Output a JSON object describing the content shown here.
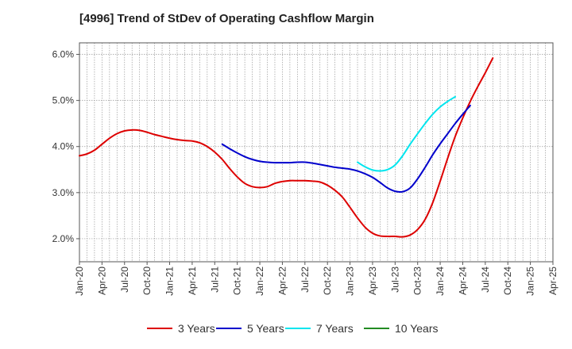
{
  "chart_data": {
    "type": "line",
    "title": "[4996]  Trend of StDev of Operating Cashflow Margin",
    "xlabel": "",
    "ylabel": "",
    "x_ticks": [
      "Jan-20",
      "Apr-20",
      "Jul-20",
      "Oct-20",
      "Jan-21",
      "Apr-21",
      "Jul-21",
      "Oct-21",
      "Jan-22",
      "Apr-22",
      "Jul-22",
      "Oct-22",
      "Jan-23",
      "Apr-23",
      "Jul-23",
      "Oct-23",
      "Jan-24",
      "Apr-24",
      "Jul-24",
      "Oct-24",
      "Jan-25",
      "Apr-25"
    ],
    "y_ticks": [
      {
        "value": 2.0,
        "label": "2.0%"
      },
      {
        "value": 3.0,
        "label": "3.0%"
      },
      {
        "value": 4.0,
        "label": "4.0%"
      },
      {
        "value": 5.0,
        "label": "5.0%"
      },
      {
        "value": 6.0,
        "label": "6.0%"
      }
    ],
    "ylim": [
      1.5,
      6.25
    ],
    "xlim": [
      "2020-01",
      "2025-04"
    ],
    "grid": true,
    "legend_position": "bottom",
    "series": [
      {
        "name": "3 Years",
        "color": "#dd0000",
        "points": [
          [
            "2020-01",
            3.8
          ],
          [
            "2020-02",
            3.84
          ],
          [
            "2020-03",
            3.92
          ],
          [
            "2020-04",
            4.05
          ],
          [
            "2020-05",
            4.18
          ],
          [
            "2020-06",
            4.28
          ],
          [
            "2020-07",
            4.34
          ],
          [
            "2020-08",
            4.36
          ],
          [
            "2020-09",
            4.35
          ],
          [
            "2020-10",
            4.31
          ],
          [
            "2020-11",
            4.26
          ],
          [
            "2020-12",
            4.22
          ],
          [
            "2021-01",
            4.18
          ],
          [
            "2021-02",
            4.15
          ],
          [
            "2021-03",
            4.13
          ],
          [
            "2021-04",
            4.12
          ],
          [
            "2021-05",
            4.08
          ],
          [
            "2021-06",
            4.0
          ],
          [
            "2021-07",
            3.88
          ],
          [
            "2021-08",
            3.72
          ],
          [
            "2021-09",
            3.52
          ],
          [
            "2021-10",
            3.34
          ],
          [
            "2021-11",
            3.2
          ],
          [
            "2021-12",
            3.13
          ],
          [
            "2022-01",
            3.11
          ],
          [
            "2022-02",
            3.13
          ],
          [
            "2022-03",
            3.2
          ],
          [
            "2022-04",
            3.24
          ],
          [
            "2022-05",
            3.26
          ],
          [
            "2022-06",
            3.26
          ],
          [
            "2022-07",
            3.26
          ],
          [
            "2022-08",
            3.25
          ],
          [
            "2022-09",
            3.23
          ],
          [
            "2022-10",
            3.16
          ],
          [
            "2022-11",
            3.05
          ],
          [
            "2022-12",
            2.9
          ],
          [
            "2023-01",
            2.68
          ],
          [
            "2023-02",
            2.45
          ],
          [
            "2023-03",
            2.25
          ],
          [
            "2023-04",
            2.12
          ],
          [
            "2023-05",
            2.06
          ],
          [
            "2023-06",
            2.05
          ],
          [
            "2023-07",
            2.05
          ],
          [
            "2023-08",
            2.04
          ],
          [
            "2023-09",
            2.08
          ],
          [
            "2023-10",
            2.2
          ],
          [
            "2023-11",
            2.42
          ],
          [
            "2023-12",
            2.78
          ],
          [
            "2024-01",
            3.25
          ],
          [
            "2024-02",
            3.75
          ],
          [
            "2024-03",
            4.22
          ],
          [
            "2024-04",
            4.62
          ],
          [
            "2024-05",
            4.98
          ],
          [
            "2024-06",
            5.3
          ],
          [
            "2024-07",
            5.6
          ],
          [
            "2024-08",
            5.92
          ]
        ]
      },
      {
        "name": "5 Years",
        "color": "#0000cc",
        "points": [
          [
            "2021-08",
            4.05
          ],
          [
            "2021-09",
            3.95
          ],
          [
            "2021-10",
            3.86
          ],
          [
            "2021-11",
            3.78
          ],
          [
            "2021-12",
            3.72
          ],
          [
            "2022-01",
            3.68
          ],
          [
            "2022-02",
            3.66
          ],
          [
            "2022-03",
            3.65
          ],
          [
            "2022-04",
            3.65
          ],
          [
            "2022-05",
            3.65
          ],
          [
            "2022-06",
            3.66
          ],
          [
            "2022-07",
            3.66
          ],
          [
            "2022-08",
            3.64
          ],
          [
            "2022-09",
            3.61
          ],
          [
            "2022-10",
            3.58
          ],
          [
            "2022-11",
            3.55
          ],
          [
            "2022-12",
            3.53
          ],
          [
            "2023-01",
            3.51
          ],
          [
            "2023-02",
            3.47
          ],
          [
            "2023-03",
            3.41
          ],
          [
            "2023-04",
            3.33
          ],
          [
            "2023-05",
            3.22
          ],
          [
            "2023-06",
            3.1
          ],
          [
            "2023-07",
            3.03
          ],
          [
            "2023-08",
            3.02
          ],
          [
            "2023-09",
            3.1
          ],
          [
            "2023-10",
            3.3
          ],
          [
            "2023-11",
            3.55
          ],
          [
            "2023-12",
            3.82
          ],
          [
            "2024-01",
            4.06
          ],
          [
            "2024-02",
            4.28
          ],
          [
            "2024-03",
            4.5
          ],
          [
            "2024-04",
            4.7
          ],
          [
            "2024-05",
            4.89
          ]
        ]
      },
      {
        "name": "7 Years",
        "color": "#00e5ee",
        "points": [
          [
            "2023-02",
            3.66
          ],
          [
            "2023-03",
            3.56
          ],
          [
            "2023-04",
            3.49
          ],
          [
            "2023-05",
            3.47
          ],
          [
            "2023-06",
            3.5
          ],
          [
            "2023-07",
            3.6
          ],
          [
            "2023-08",
            3.8
          ],
          [
            "2023-09",
            4.05
          ],
          [
            "2023-10",
            4.28
          ],
          [
            "2023-11",
            4.5
          ],
          [
            "2023-12",
            4.7
          ],
          [
            "2024-01",
            4.86
          ],
          [
            "2024-02",
            4.98
          ],
          [
            "2024-03",
            5.08
          ]
        ]
      },
      {
        "name": "10 Years",
        "color": "#228b22",
        "points": []
      }
    ]
  }
}
